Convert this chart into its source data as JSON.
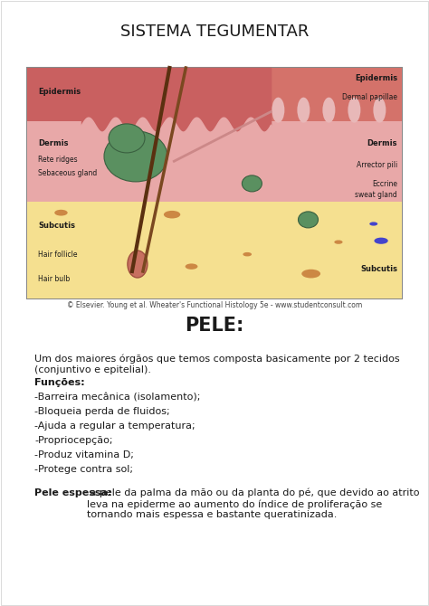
{
  "title": "SISTEMA TEGUMENTAR",
  "subtitle": "PELE:",
  "copyright_text": "© Elsevier. Young et al. Wheater's Functional Histology 5e - www.studentconsult.com",
  "intro_text": "Um dos maiores órgãos que temos composta basicamente por 2 tecidos\n(conjuntivo e epitelial).",
  "funcoes_label": "Funções:",
  "funcoes_items": [
    "-Barreira mecânica (isolamento);",
    "-Bloqueia perda de fluidos;",
    "-Ajuda a regular a temperatura;",
    "-Propriocepção;",
    "-Produz vitamina D;",
    "-Protege contra sol;"
  ],
  "pele_espessa_label": "Pele espessa:",
  "pele_espessa_text": " a pele da palma da mão ou da planta do pé, que devido ao atrito leva na epiderme ao aumento do índice de proliferação se tornando mais espessa e bastante queratinizada.",
  "bg_color": "#ffffff",
  "text_color": "#1a1a1a",
  "diagram_bg": "#7fbfbf",
  "epidermis_color": "#d4726a",
  "dermis_color": "#e8a0a0",
  "subcutis_color": "#f5e090",
  "left_labels": [
    "Epidermis",
    "Dermis",
    "Rete ridges",
    "Sebaceous gland",
    "Subcutis",
    "Hair follicle",
    "Hair bulb"
  ],
  "right_labels": [
    "Epidermis",
    "Dermal papillae",
    "Dermis",
    "Arrector pili",
    "Eccrine\nsweat gland",
    "Subcutis"
  ],
  "fig_width": 4.74,
  "fig_height": 6.7,
  "dpi": 100
}
